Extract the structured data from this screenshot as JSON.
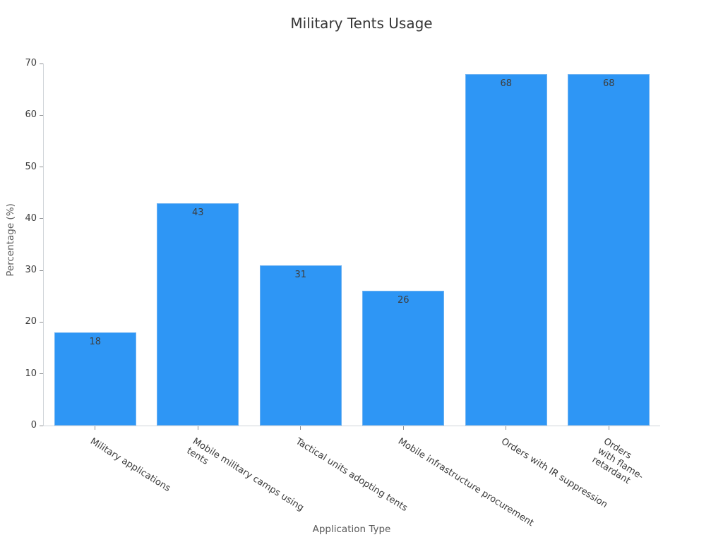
{
  "chart_data": {
    "type": "bar",
    "title": "Military Tents Usage",
    "xlabel": "Application Type",
    "ylabel": "Percentage (%)",
    "categories": [
      "Military applications",
      "Mobile military camps using\ntents",
      "Tactical units adopting tents",
      "Mobile infrastructure procurement",
      "Orders with IR suppression",
      "Orders with flame-retardant"
    ],
    "values": [
      18,
      43,
      31,
      26,
      68,
      68
    ],
    "value_labels": [
      "18",
      "43",
      "31",
      "26",
      "68",
      "68"
    ],
    "ylim": [
      0,
      70
    ],
    "yticks": [
      0,
      10,
      20,
      30,
      40,
      50,
      60,
      70
    ],
    "grid": false,
    "legend": null,
    "x_tick_rotation_deg": 32,
    "bar_width_fraction": 0.8,
    "colors": {
      "bar_fill": "#2e96f5",
      "bar_edge": "#6fb3f2",
      "value_label": "#3d3d3d",
      "tick_label": "#3a3a3a",
      "axis_label": "#595959",
      "title": "#363636",
      "spine": "#d0d4d9",
      "tick_mark": "#8f9194",
      "background": "#ffffff"
    }
  }
}
